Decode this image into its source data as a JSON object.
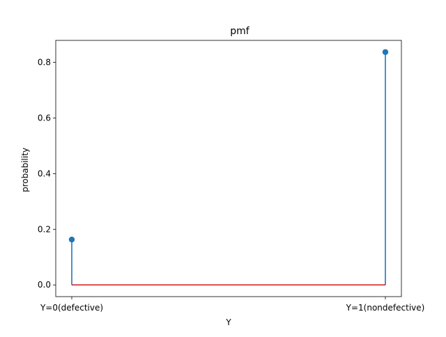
{
  "chart_data": {
    "type": "stem",
    "title": "pmf",
    "xlabel": "Y",
    "ylabel": "probability",
    "categories": [
      "Y=0(defective)",
      "Y=1(nondefective)"
    ],
    "values": [
      0.163,
      0.837
    ],
    "ylim": [
      -0.042,
      0.879
    ],
    "yticks": [
      0.0,
      0.2,
      0.4,
      0.6,
      0.8
    ],
    "ytick_labels": [
      "0.0",
      "0.2",
      "0.4",
      "0.6",
      "0.8"
    ],
    "grid": false,
    "legend": "none",
    "colors": {
      "stem": "#1f77b4",
      "marker": "#1f77b4",
      "baseline": "#d62728",
      "axes": "#000000"
    }
  }
}
